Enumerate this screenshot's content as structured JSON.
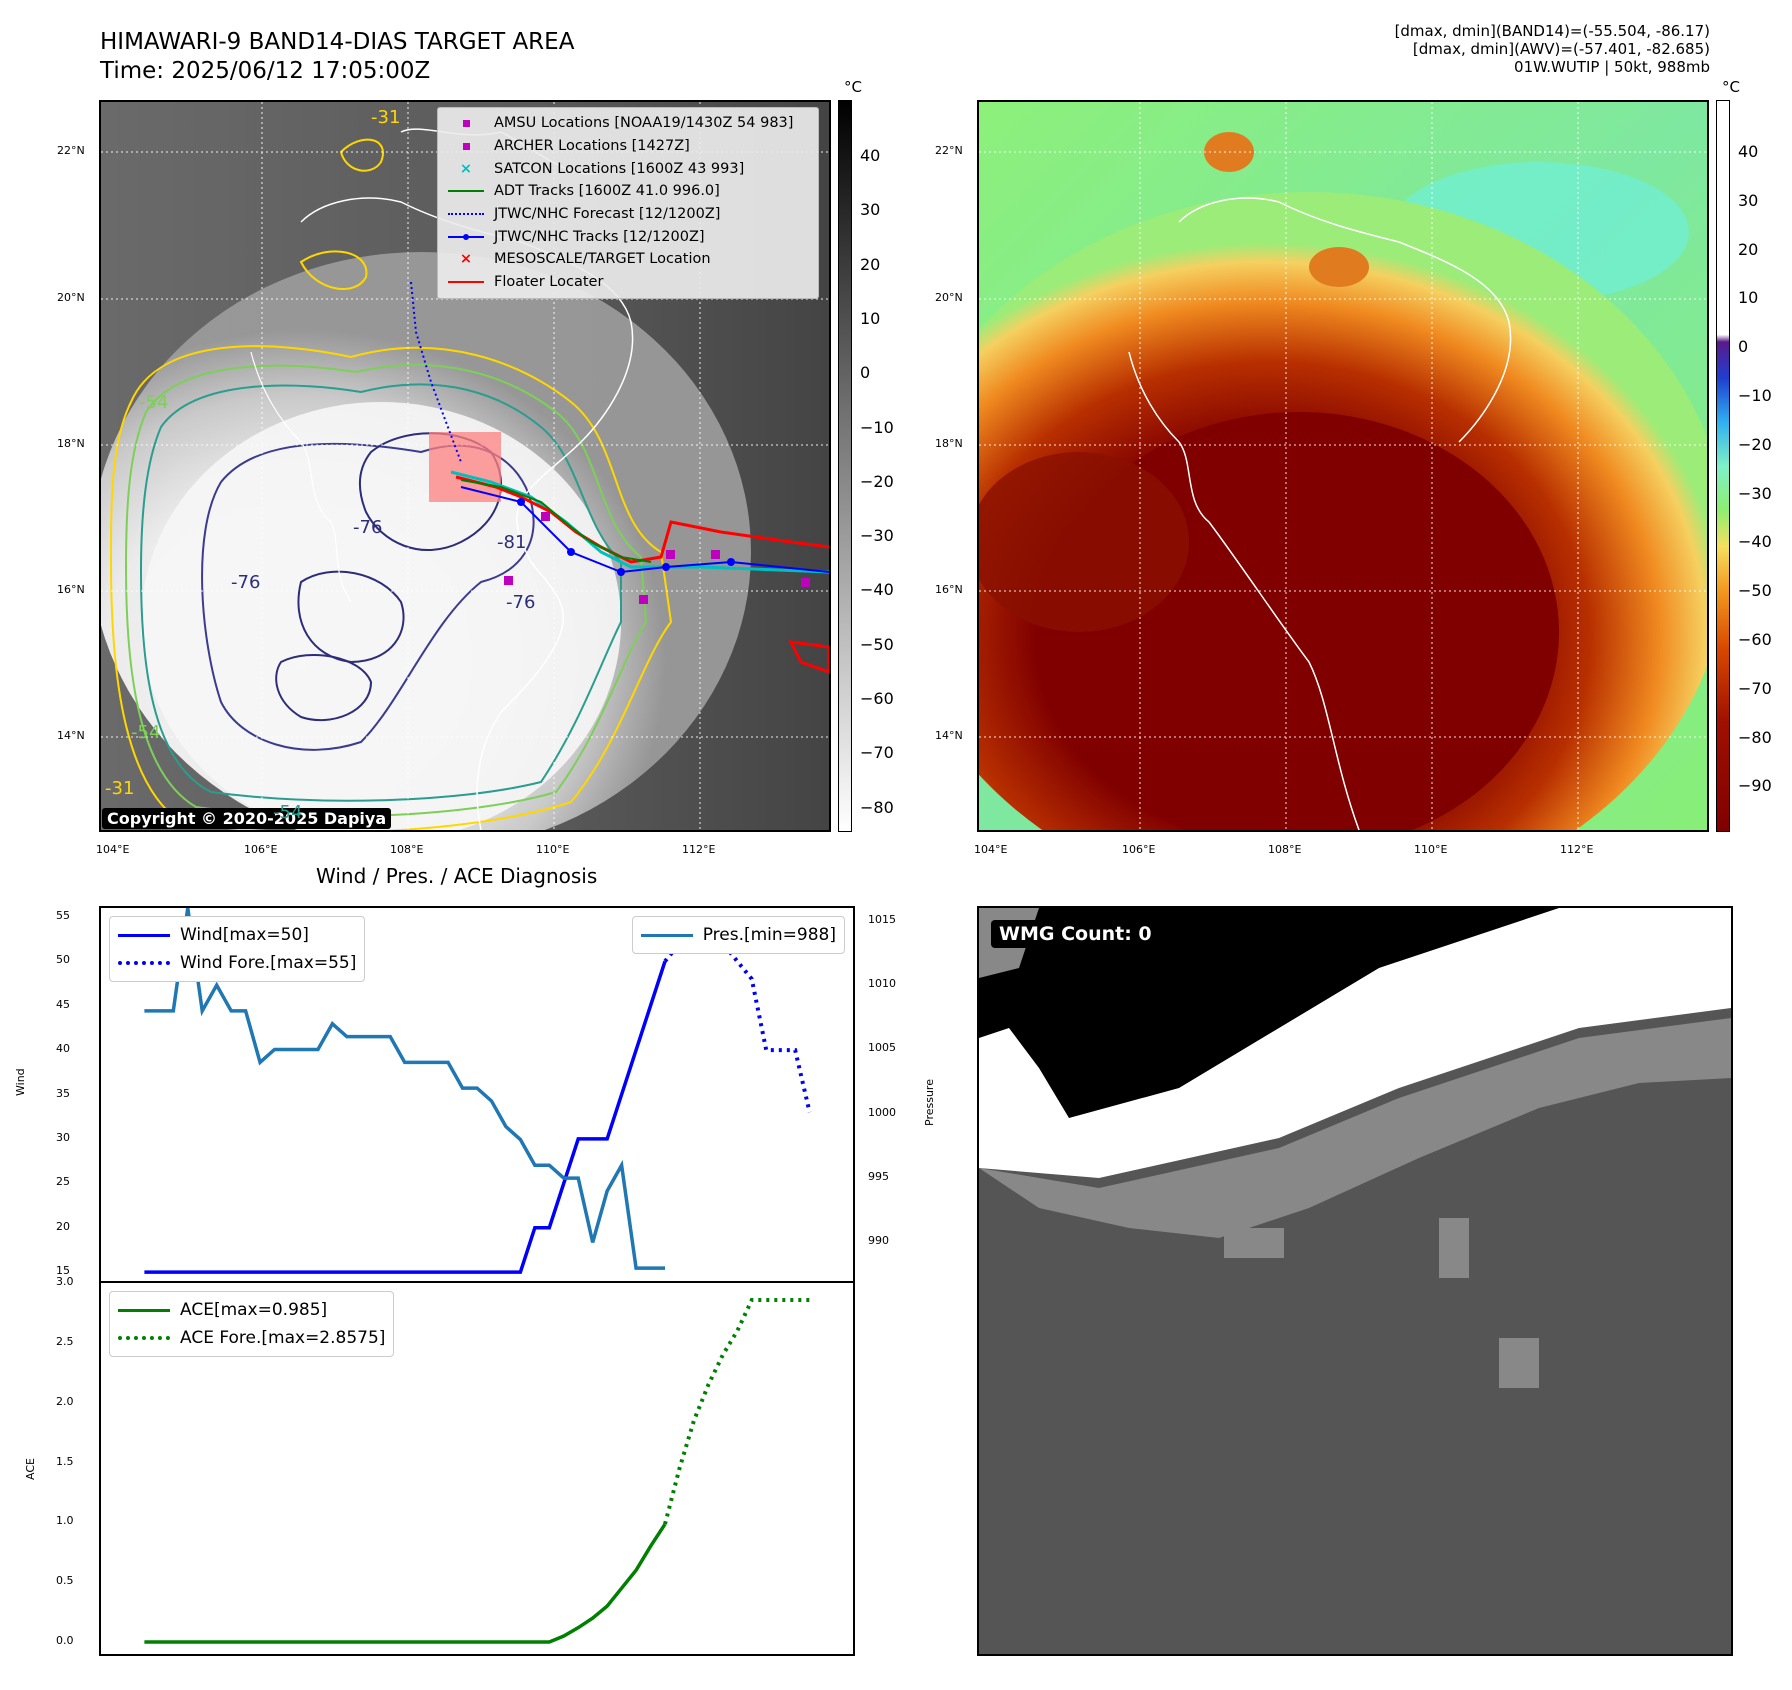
{
  "header": {
    "title_line1": "HIMAWARI-9 BAND14-DIAS TARGET AREA",
    "title_line2": "Time: 2025/06/12 17:05:00Z",
    "info_line1": "[dmax, dmin](BAND14)=(-55.504, -86.17)",
    "info_line2": "[dmax, dmin](AWV)=(-57.401, -82.685)",
    "info_line3": "01W.WUTIP | 50kt, 988mb"
  },
  "colors": {
    "wind": "#0000ff",
    "pressure": "#1f77b4",
    "ace": "#008000",
    "adt": "#008000",
    "jtwc": "#0000ff",
    "amsu": "#bf00bf",
    "satcon": "#00bfbf",
    "target": "#ff0000"
  },
  "map_ir": {
    "unit": "°C",
    "colorbar_ticks": [
      "40",
      "30",
      "20",
      "10",
      "0",
      "−10",
      "−20",
      "−30",
      "−40",
      "−50",
      "−60",
      "−70",
      "−80"
    ],
    "lat_ticks": [
      "22°N",
      "20°N",
      "18°N",
      "16°N",
      "14°N"
    ],
    "lon_ticks": [
      "104°E",
      "106°E",
      "108°E",
      "110°E",
      "112°E"
    ],
    "contour_labels": [
      "-31",
      "-54",
      "-76",
      "-81",
      "-76",
      "-76",
      "-54",
      "-31",
      "-54"
    ],
    "copyright": "Copyright © 2020-2025 Dapiya",
    "legend": [
      {
        "label": "AMSU Locations [NOAA19/1430Z 54 983]",
        "icon": "square-marker"
      },
      {
        "label": "ARCHER Locations [1427Z]",
        "icon": "square-marker"
      },
      {
        "label": "SATCON Locations [1600Z 43 993]",
        "icon": "x-marker"
      },
      {
        "label": "ADT Tracks [1600Z 41.0 996.0]",
        "icon": "solid-line"
      },
      {
        "label": "JTWC/NHC Forecast [12/1200Z]",
        "icon": "dotted-line"
      },
      {
        "label": "JTWC/NHC Tracks [12/1200Z]",
        "icon": "line-dot"
      },
      {
        "label": "MESOSCALE/TARGET Location",
        "icon": "x-marker"
      },
      {
        "label": "Floater Locater",
        "icon": "solid-line"
      }
    ]
  },
  "map_awv": {
    "unit": "°C",
    "colorbar_ticks": [
      "40",
      "30",
      "20",
      "10",
      "0",
      "−10",
      "−20",
      "−30",
      "−40",
      "−50",
      "−60",
      "−70",
      "−80",
      "−90"
    ],
    "lat_ticks": [
      "22°N",
      "20°N",
      "18°N",
      "16°N",
      "14°N"
    ],
    "lon_ticks": [
      "104°E",
      "106°E",
      "108°E",
      "110°E",
      "112°E"
    ]
  },
  "wmg": {
    "label": "WMG Count: 0"
  },
  "chart_data": [
    {
      "type": "line",
      "title": "Wind / Pres. / ACE Diagnosis",
      "ylabel": "Wind",
      "ylabel_right": "Pressure",
      "ylim": [
        14,
        56
      ],
      "ylim_right": [
        987,
        1016
      ],
      "yticks": [
        15,
        20,
        25,
        30,
        35,
        40,
        45,
        50,
        55
      ],
      "yticks_right": [
        990,
        995,
        1000,
        1005,
        1010,
        1015
      ],
      "x": [
        0,
        1,
        2,
        3,
        4,
        5,
        6,
        7,
        8,
        9,
        10,
        11,
        12,
        13,
        14,
        15,
        16,
        17,
        18,
        19,
        20,
        21,
        22,
        23,
        24,
        25,
        26,
        27,
        28,
        29,
        30,
        31,
        32,
        33,
        34,
        35,
        36
      ],
      "series": [
        {
          "name": "Wind[max=50]",
          "style": "solid",
          "x": [
            0,
            1,
            2,
            3,
            4,
            5,
            6,
            7,
            8,
            9,
            10,
            11,
            12,
            13,
            14,
            15,
            16,
            17,
            18,
            19,
            20,
            21,
            22,
            23,
            24,
            25,
            26,
            27,
            28,
            29,
            30,
            31,
            32,
            33,
            34,
            35,
            36
          ],
          "values": [
            15,
            15,
            15,
            15,
            15,
            15,
            15,
            15,
            15,
            15,
            15,
            15,
            15,
            15,
            15,
            15,
            15,
            15,
            15,
            15,
            15,
            15,
            15,
            15,
            15,
            15,
            15,
            20,
            20,
            25,
            30,
            30,
            30,
            35,
            40,
            45,
            50
          ]
        },
        {
          "name": "Wind Fore.[max=55]",
          "style": "dotted",
          "x": [
            36,
            37,
            38,
            39,
            40,
            41,
            42,
            43,
            44,
            45,
            46
          ],
          "values": [
            50,
            52,
            55,
            54,
            52,
            50,
            48,
            40,
            40,
            40,
            33
          ]
        },
        {
          "name": "Pres.[min=988]",
          "style": "solid",
          "axis": "right",
          "x": [
            0,
            1,
            2,
            3,
            4,
            5,
            6,
            7,
            8,
            9,
            10,
            11,
            12,
            13,
            14,
            15,
            16,
            17,
            18,
            19,
            20,
            21,
            22,
            23,
            24,
            25,
            26,
            27,
            28,
            29,
            30,
            31,
            32,
            33,
            34,
            35,
            36
          ],
          "values": [
            1008,
            1008,
            1008,
            1016,
            1008,
            1010,
            1008,
            1008,
            1004,
            1005,
            1005,
            1005,
            1005,
            1007,
            1006,
            1006,
            1006,
            1006,
            1004,
            1004,
            1004,
            1004,
            1002,
            1002,
            1001,
            999,
            998,
            996,
            996,
            995,
            995,
            990,
            994,
            996,
            988,
            988,
            988
          ]
        }
      ]
    },
    {
      "type": "line",
      "ylabel": "ACE",
      "ylim": [
        -0.1,
        3.0
      ],
      "yticks": [
        0.0,
        0.5,
        1.0,
        1.5,
        2.0,
        2.5,
        3.0
      ],
      "series": [
        {
          "name": "ACE[max=0.985]",
          "style": "solid",
          "x": [
            0,
            5,
            10,
            15,
            20,
            25,
            26,
            27,
            28,
            29,
            30,
            31,
            32,
            33,
            34,
            35,
            36
          ],
          "values": [
            0,
            0,
            0,
            0,
            0,
            0,
            0,
            0,
            0,
            0.05,
            0.12,
            0.2,
            0.3,
            0.45,
            0.6,
            0.8,
            0.985
          ]
        },
        {
          "name": "ACE Fore.[max=2.8575]",
          "style": "dotted",
          "x": [
            36,
            37,
            38,
            39,
            40,
            41,
            42,
            43,
            44,
            45,
            46
          ],
          "values": [
            0.985,
            1.45,
            1.85,
            2.15,
            2.4,
            2.6,
            2.8575,
            2.8575,
            2.8575,
            2.8575,
            2.8575
          ]
        }
      ]
    }
  ]
}
